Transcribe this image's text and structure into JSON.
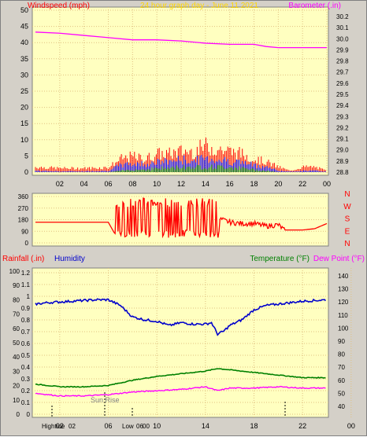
{
  "colors": {
    "plot_bg": "#ffffc0",
    "frame_bg": "#d4d0c8",
    "grid": "#e0c080",
    "wind_speed": "#ff0000",
    "wind_gust_mid": "#0000ff",
    "wind_low": "#008000",
    "barometer": "#ff00ff",
    "direction": "#ff0000",
    "humidity": "#0000cc",
    "temperature": "#008000",
    "dew_point": "#ff00ff",
    "title_color": "#ffd700",
    "axis_text": "#000000",
    "marker": "#000000"
  },
  "chart_data": [
    {
      "id": "wind-barometer",
      "type": "line",
      "title": "24 hour graph day - June 11 2021",
      "left_axis_label": "Windspeed (mph)",
      "right_axis_label": "Barometer (.in)",
      "left_ticks": [
        "0",
        "5",
        "10",
        "15",
        "20",
        "25",
        "30",
        "35",
        "40",
        "45",
        "50"
      ],
      "right_ticks": [
        "28.8",
        "28.9",
        "29.0",
        "29.1",
        "29.2",
        "29.3",
        "29.4",
        "29.5",
        "29.6",
        "29.7",
        "29.8",
        "29.9",
        "30.0",
        "30.1",
        "30.2"
      ],
      "x_ticks": [
        "02",
        "04",
        "06",
        "08",
        "10",
        "12",
        "14",
        "16",
        "18",
        "20",
        "22",
        "00"
      ],
      "grid": true,
      "barometer": {
        "name": "Barometer",
        "x": [
          0,
          2,
          4,
          6,
          8,
          10,
          12,
          14,
          16,
          18,
          19,
          20,
          22,
          24
        ],
        "y": [
          30.06,
          30.05,
          30.03,
          30.01,
          29.99,
          29.99,
          29.98,
          29.96,
          29.95,
          29.95,
          29.93,
          29.92,
          29.92,
          29.92
        ]
      },
      "wind": {
        "x": [
          0,
          2,
          4,
          6,
          7,
          8,
          9,
          10,
          11,
          12,
          13,
          14,
          15,
          16,
          17,
          18,
          19,
          20,
          21,
          22,
          23,
          24
        ],
        "gust": [
          2,
          1.5,
          1.5,
          1.8,
          5,
          6,
          5,
          7,
          7,
          8,
          8,
          10,
          9,
          8,
          7,
          5,
          4,
          2,
          0.5,
          2,
          2,
          0.5
        ],
        "speed": [
          0.5,
          0.3,
          0.3,
          0.5,
          2.5,
          3,
          3,
          3.5,
          4,
          4.5,
          4,
          5,
          4.5,
          4,
          3.5,
          2.5,
          2,
          0.5,
          0.2,
          0.5,
          0.5,
          0.2
        ],
        "low": [
          0,
          0,
          0,
          0,
          0.5,
          1,
          1,
          1.5,
          1.5,
          2,
          2,
          2,
          2,
          2,
          1.5,
          1,
          0.5,
          0,
          0,
          0,
          0,
          0
        ]
      }
    },
    {
      "id": "wind-direction",
      "type": "line",
      "left_ticks": [
        "0",
        "90",
        "180",
        "270",
        "360"
      ],
      "right_labels": [
        "N",
        "W",
        "S",
        "E",
        "N"
      ],
      "x": [
        0,
        3,
        6,
        6.6,
        7,
        8,
        9,
        10,
        11,
        12,
        13,
        14,
        14.5,
        15,
        16,
        17,
        18,
        19,
        20,
        20.5,
        22,
        23,
        24
      ],
      "y": [
        160,
        160,
        160,
        60,
        150,
        60,
        300,
        70,
        330,
        60,
        340,
        80,
        320,
        190,
        160,
        150,
        150,
        130,
        140,
        100,
        100,
        110,
        150
      ]
    },
    {
      "id": "rain-humidity-temp",
      "type": "line",
      "labels": {
        "rainfall": "Rainfall (.in)",
        "humidity": "Humidity",
        "temperature": "Temperature (°F)",
        "dew_point": "Dew Point (°F)"
      },
      "rain_ticks": [
        "0",
        "0.1",
        "0.2",
        "0.3",
        "0.4",
        "0.5",
        "0.6",
        "0.7",
        "0.8",
        "0.9",
        "1",
        "1.1",
        "1.2"
      ],
      "humidity_ticks": [
        "0",
        "10",
        "20",
        "30",
        "40",
        "50",
        "60",
        "70",
        "80",
        "90",
        "100"
      ],
      "temp_ticks": [
        "40",
        "50",
        "60",
        "70",
        "80",
        "90",
        "100",
        "110",
        "120",
        "130",
        "140"
      ],
      "x_ticks": [
        "02",
        "06",
        "10",
        "14",
        "18",
        "22",
        "00"
      ],
      "bottom_labels": [
        "Hightide",
        "02",
        "Low",
        "06",
        "Low",
        "00"
      ],
      "annotations": [
        "Sun Rise"
      ],
      "humidity": {
        "name": "Humidity",
        "x": [
          0,
          1,
          3,
          5,
          6,
          7,
          8,
          9,
          10,
          11,
          12,
          13,
          14,
          14.5,
          15,
          15.5,
          16,
          17,
          18,
          19,
          20,
          22,
          24
        ],
        "y": [
          77,
          78,
          79,
          80,
          80,
          76,
          68,
          66,
          65,
          62,
          64,
          63,
          63,
          64,
          56,
          58,
          62,
          66,
          73,
          76,
          77,
          79,
          80
        ]
      },
      "temperature": {
        "name": "Temperature",
        "x": [
          0,
          2,
          4,
          6,
          8,
          10,
          12,
          14,
          15,
          16,
          18,
          20,
          22,
          24
        ],
        "y": [
          57,
          55,
          55,
          56,
          60,
          63,
          65,
          67,
          69,
          68,
          66,
          64,
          62,
          62
        ]
      },
      "dew_point": {
        "name": "Dew Point",
        "x": [
          0,
          2,
          4,
          6,
          8,
          10,
          12,
          14,
          15,
          16,
          18,
          20,
          22,
          24
        ],
        "y": [
          50,
          48,
          48,
          49,
          51,
          52,
          53,
          55,
          52,
          54,
          54,
          55,
          54,
          54
        ]
      }
    }
  ]
}
